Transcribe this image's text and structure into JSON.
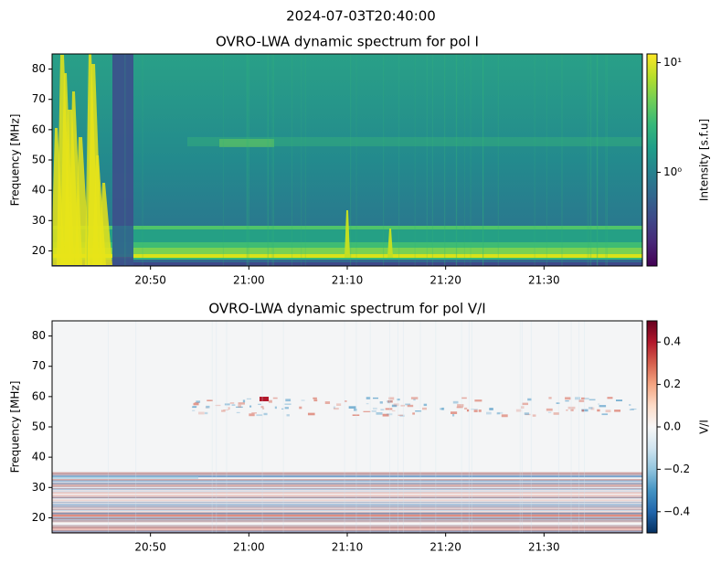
{
  "suptitle": "2024-07-03T20:40:00",
  "chart_data": [
    {
      "type": "heatmap",
      "title": "OVRO-LWA dynamic spectrum for pol I",
      "ylabel": "Frequency [MHz]",
      "colorbar_label": "Intensity [s.f.u]",
      "colormap": "viridis",
      "colorbar_log": true,
      "xlim": [
        "2024-07-03T20:40:00",
        "2024-07-03T21:40:00"
      ],
      "xticks": [
        {
          "value": "2024-07-03T20:50:00",
          "label": "20:50"
        },
        {
          "value": "2024-07-03T21:00:00",
          "label": "21:00"
        },
        {
          "value": "2024-07-03T21:10:00",
          "label": "21:10"
        },
        {
          "value": "2024-07-03T21:20:00",
          "label": "21:20"
        },
        {
          "value": "2024-07-03T21:30:00",
          "label": "21:30"
        }
      ],
      "ylim": [
        15,
        85
      ],
      "yticks": [
        20,
        30,
        40,
        50,
        60,
        70,
        80
      ],
      "clim": [
        0.14,
        12
      ],
      "cticks": [
        {
          "value": 1,
          "label": "10⁰"
        },
        {
          "value": 10,
          "label": "10¹"
        }
      ]
    },
    {
      "type": "heatmap",
      "title": "OVRO-LWA dynamic spectrum for pol V/I",
      "ylabel": "Frequency [MHz]",
      "colorbar_label": "V/I",
      "colormap": "RdBu_r",
      "colorbar_log": false,
      "xlim": [
        "2024-07-03T20:40:00",
        "2024-07-03T21:40:00"
      ],
      "xticks": [
        {
          "value": "2024-07-03T20:50:00",
          "label": "20:50"
        },
        {
          "value": "2024-07-03T21:00:00",
          "label": "21:00"
        },
        {
          "value": "2024-07-03T21:10:00",
          "label": "21:10"
        },
        {
          "value": "2024-07-03T21:20:00",
          "label": "21:20"
        },
        {
          "value": "2024-07-03T21:30:00",
          "label": "21:30"
        }
      ],
      "ylim": [
        15,
        85
      ],
      "yticks": [
        20,
        30,
        40,
        50,
        60,
        70,
        80
      ],
      "clim": [
        -0.5,
        0.5
      ],
      "cticks": [
        {
          "value": -0.4,
          "label": "−0.4"
        },
        {
          "value": -0.2,
          "label": "−0.2"
        },
        {
          "value": 0,
          "label": "0.0"
        },
        0.2,
        0.4
      ]
    }
  ]
}
